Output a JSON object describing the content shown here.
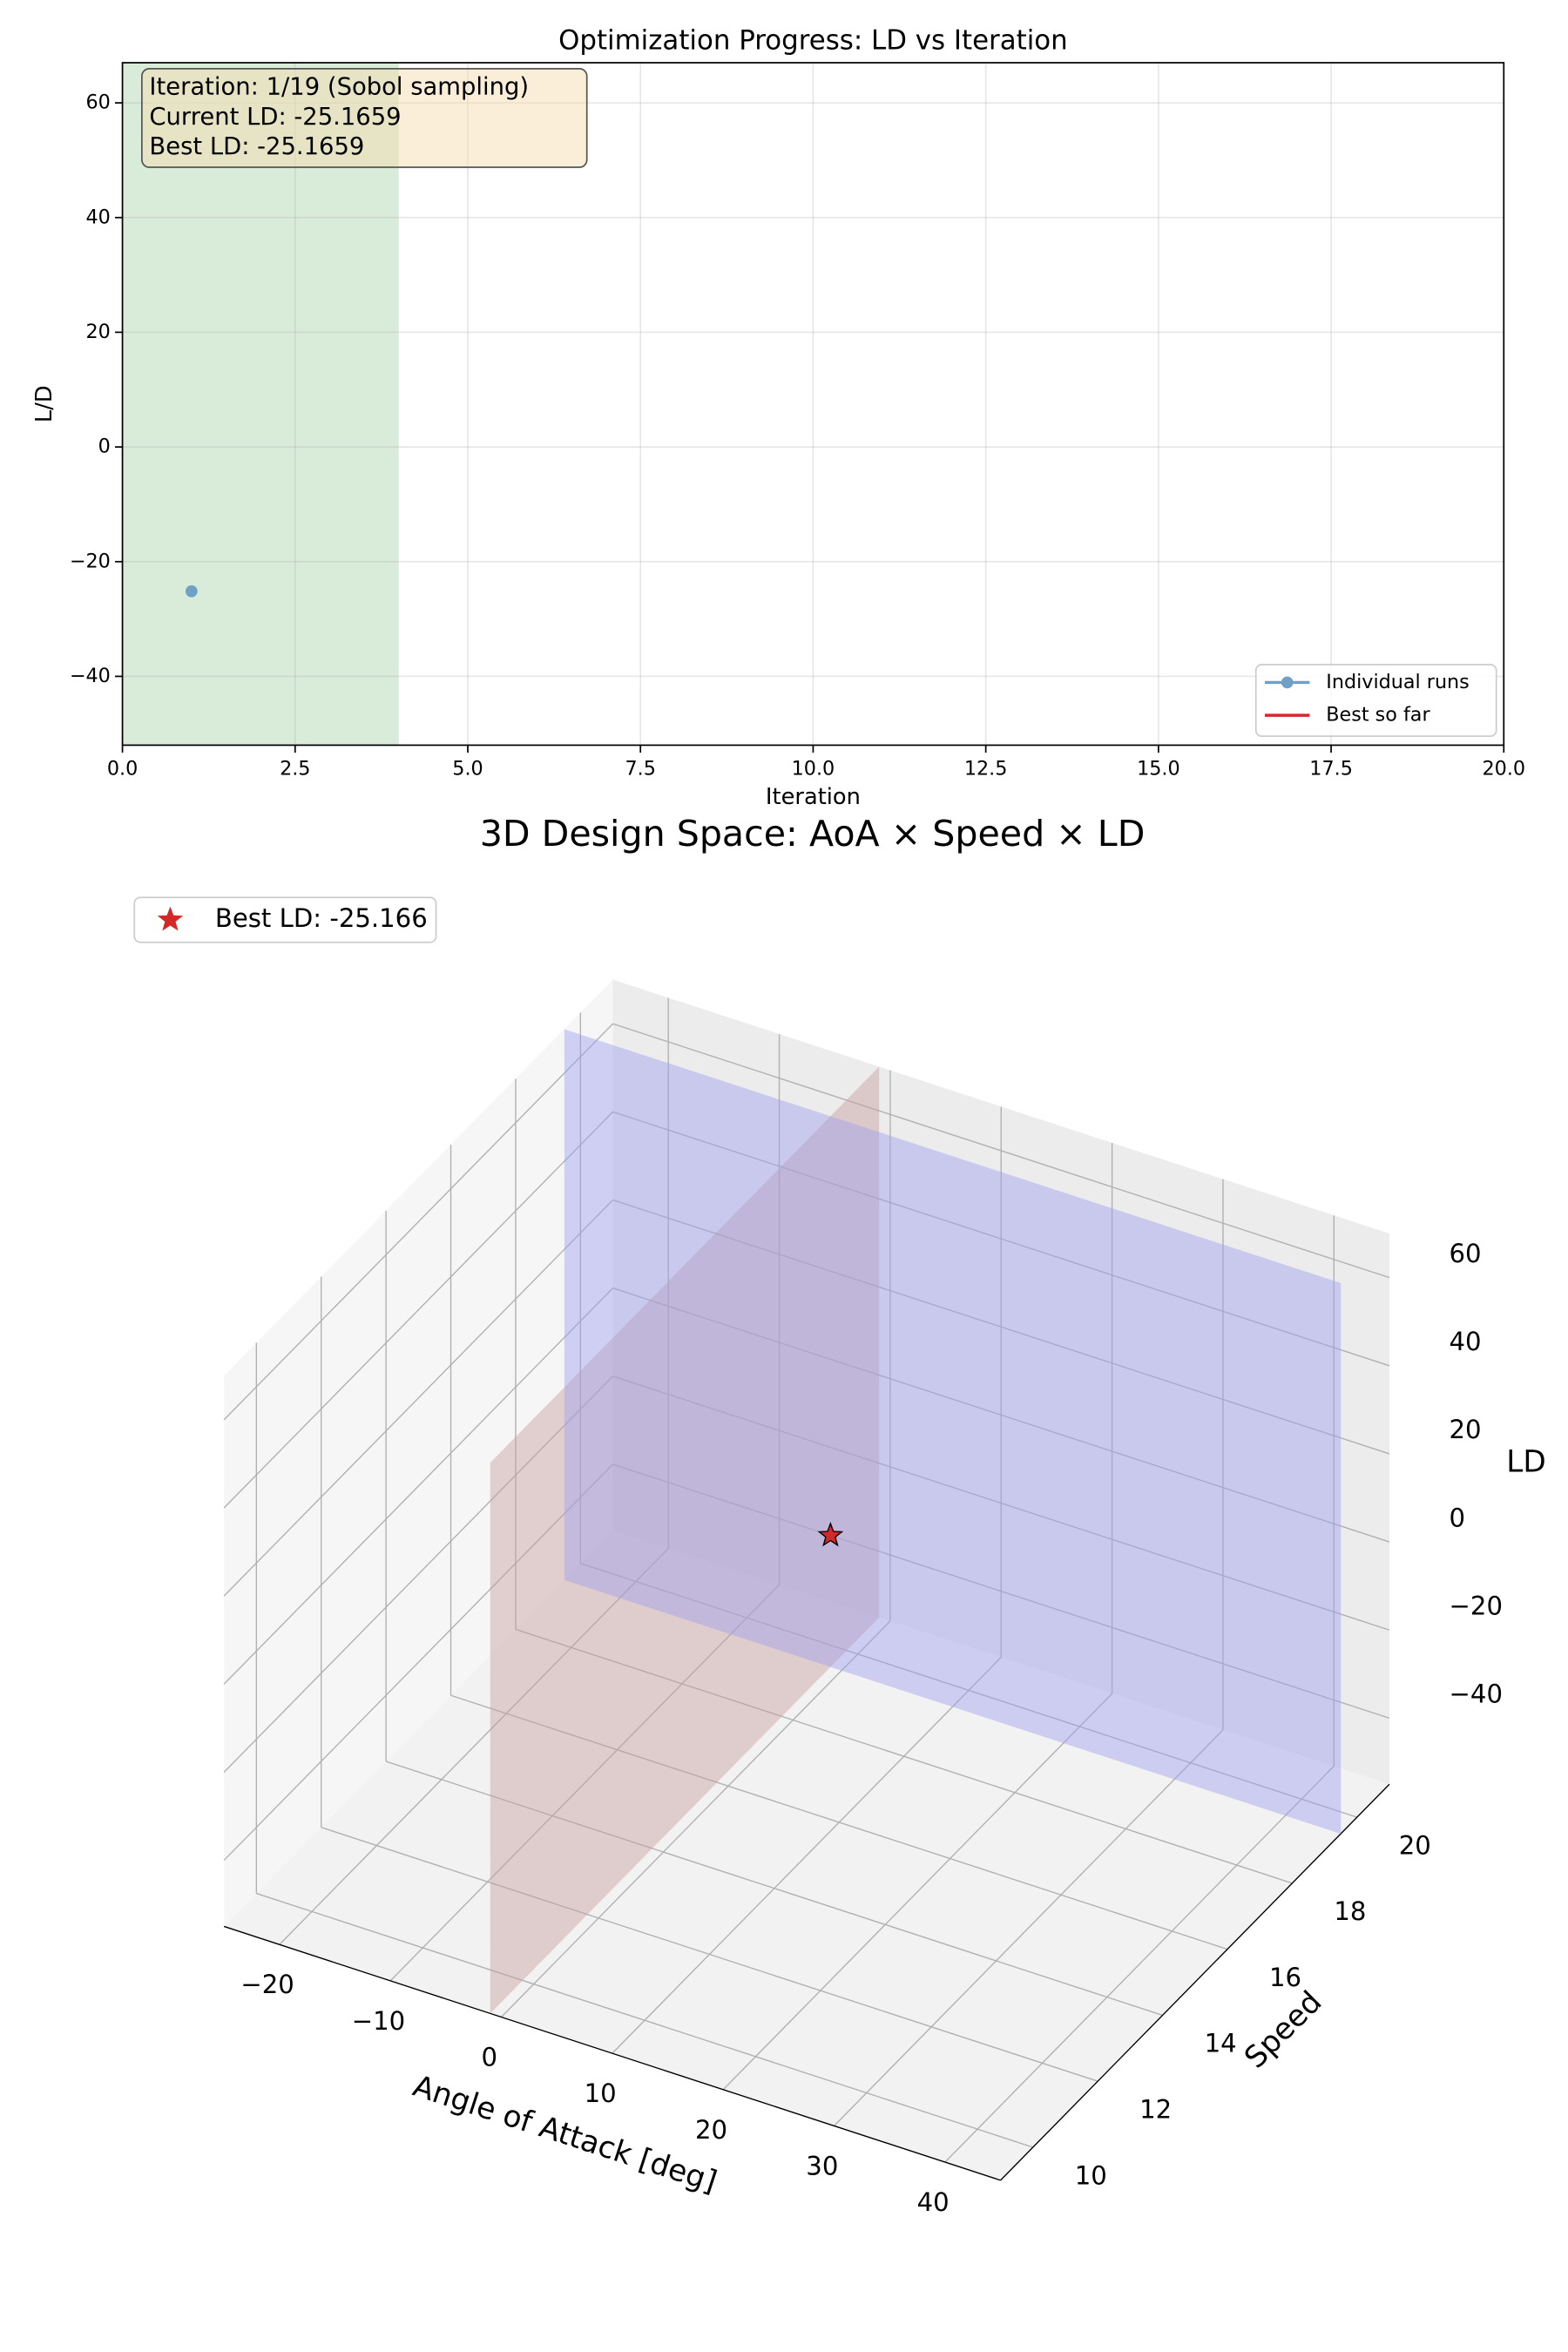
{
  "chart_data": [
    {
      "type": "line",
      "title": "Optimization Progress: LD vs Iteration",
      "xlabel": "Iteration",
      "ylabel": "L/D",
      "x": [
        1
      ],
      "series": [
        {
          "name": "Individual runs",
          "color": "#6fa0c8",
          "marker": "circle",
          "values": [
            -25.1659
          ]
        },
        {
          "name": "Best so far",
          "color": "#d62728",
          "marker": "none",
          "values": [
            -25.1659
          ]
        }
      ],
      "xlim": [
        0,
        20
      ],
      "xticks": [
        {
          "value": 0,
          "label": "0.0"
        },
        2.5,
        {
          "value": 5,
          "label": "5.0"
        },
        7.5,
        {
          "value": 10,
          "label": "10.0"
        },
        12.5,
        {
          "value": 15,
          "label": "15.0"
        },
        17.5,
        {
          "value": 20,
          "label": "20.0"
        }
      ],
      "ylim": [
        -52,
        67
      ],
      "yticks": [
        {
          "value": -40,
          "label": "−40"
        },
        {
          "value": -20,
          "label": "−20"
        },
        0,
        20,
        40,
        60
      ],
      "highlight_x": [
        0,
        4
      ],
      "highlight_color": "#d9ebd9",
      "annotation": [
        "Iteration: 1/19 (Sobol sampling)",
        "Current LD: -25.1659",
        "Best LD: -25.1659"
      ],
      "grid": true,
      "legend": "lower right"
    },
    {
      "type": "scatter3d",
      "title": "3D Design Space: AoA × Speed × LD",
      "xlabel": "Angle of Attack [deg]",
      "ylabel": "Speed",
      "zlabel": "LD",
      "series": [
        {
          "name": "Best LD: -25.166",
          "color": "#d62728",
          "marker": "star",
          "x": [
            -1
          ],
          "y": [
            19.5
          ],
          "z": [
            -25.1659
          ]
        }
      ],
      "xlim": [
        -25,
        45
      ],
      "xticks": [
        {
          "value": -20,
          "label": "−20"
        },
        {
          "value": -10,
          "label": "−10"
        },
        0,
        10,
        20,
        30,
        40
      ],
      "ylim": [
        9,
        21
      ],
      "yticks": [
        10,
        12,
        14,
        16,
        18,
        20
      ],
      "zlim": [
        -55,
        70
      ],
      "zticks": [
        {
          "value": -40,
          "label": "−40"
        },
        {
          "value": -20,
          "label": "−20"
        },
        0,
        20,
        40,
        60
      ],
      "slice_planes": [
        {
          "axis": "x",
          "color": "#c8a0a0"
        },
        {
          "axis": "y",
          "color": "#a0a0f0"
        }
      ],
      "grid": true,
      "legend": "upper left"
    }
  ]
}
